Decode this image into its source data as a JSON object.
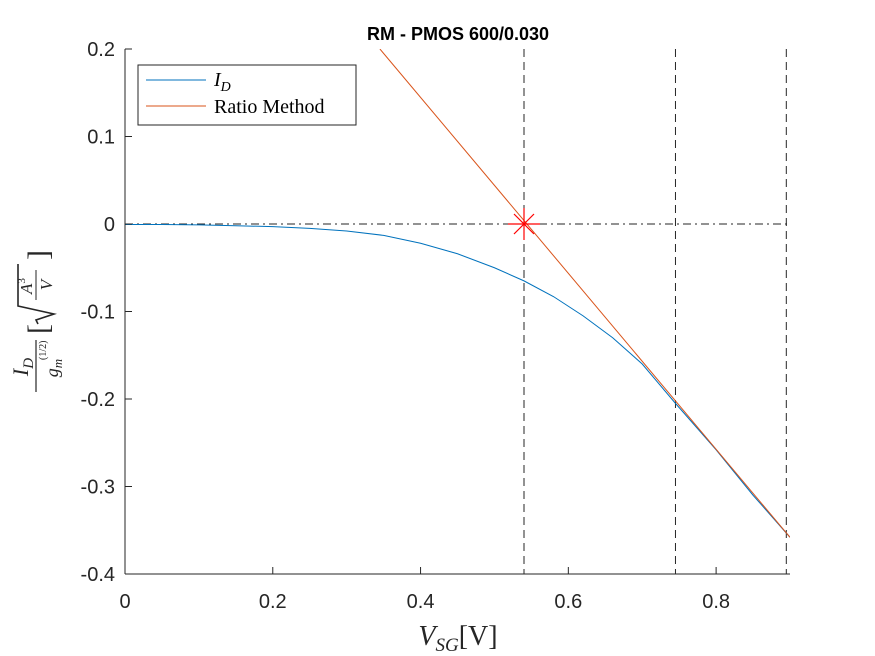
{
  "chart_data": {
    "type": "line",
    "title": "RM - PMOS 600/0.030",
    "xlabel": {
      "main": "V",
      "sub": "SG",
      "unit": "[V]"
    },
    "ylabel": {
      "num_main": "I",
      "num_sub": "D",
      "den_main": "g",
      "den_sub": "m",
      "den_exp_num": "1",
      "den_exp_den": "2",
      "unit_open": "[",
      "unit_close": "]",
      "root_num_main": "A",
      "root_num_exp": "3",
      "root_den": "V"
    },
    "xlim": [
      0,
      0.9
    ],
    "ylim": [
      -0.4,
      0.2
    ],
    "x_ticks": [
      0,
      0.2,
      0.4,
      0.6,
      0.8
    ],
    "x_tick_labels": [
      "0",
      "0.2",
      "0.4",
      "0.6",
      "0.8"
    ],
    "y_ticks": [
      0.2,
      0.1,
      0,
      -0.1,
      -0.2,
      -0.3,
      -0.4
    ],
    "y_tick_labels": [
      "0.2",
      "0.1",
      "0",
      "-0.1",
      "-0.2",
      "-0.3",
      "-0.4"
    ],
    "grid": false,
    "legend_position": "top-left",
    "series": [
      {
        "name_main": "I",
        "name_sub": "D",
        "color": "#0072BD",
        "x": [
          0,
          0.05,
          0.1,
          0.15,
          0.2,
          0.25,
          0.3,
          0.35,
          0.4,
          0.45,
          0.5,
          0.54,
          0.58,
          0.62,
          0.66,
          0.7,
          0.745,
          0.8,
          0.85,
          0.9
        ],
        "y": [
          -0.0005,
          -0.0005,
          -0.001,
          -0.002,
          -0.003,
          -0.005,
          -0.008,
          -0.013,
          -0.022,
          -0.034,
          -0.05,
          -0.065,
          -0.083,
          -0.105,
          -0.13,
          -0.16,
          -0.205,
          -0.258,
          -0.31,
          -0.358
        ]
      },
      {
        "name": "Ratio Method",
        "color": "#D95319",
        "x": [
          0.345,
          0.9
        ],
        "y": [
          0.2,
          -0.358
        ]
      }
    ],
    "reference_lines": {
      "vertical_dashed_x": [
        0.54,
        0.745,
        0.895
      ],
      "horizontal_dashdot_y": 0
    },
    "marker": {
      "x": 0.54,
      "y": 0,
      "color": "#FF0000",
      "symbol": "star"
    }
  }
}
